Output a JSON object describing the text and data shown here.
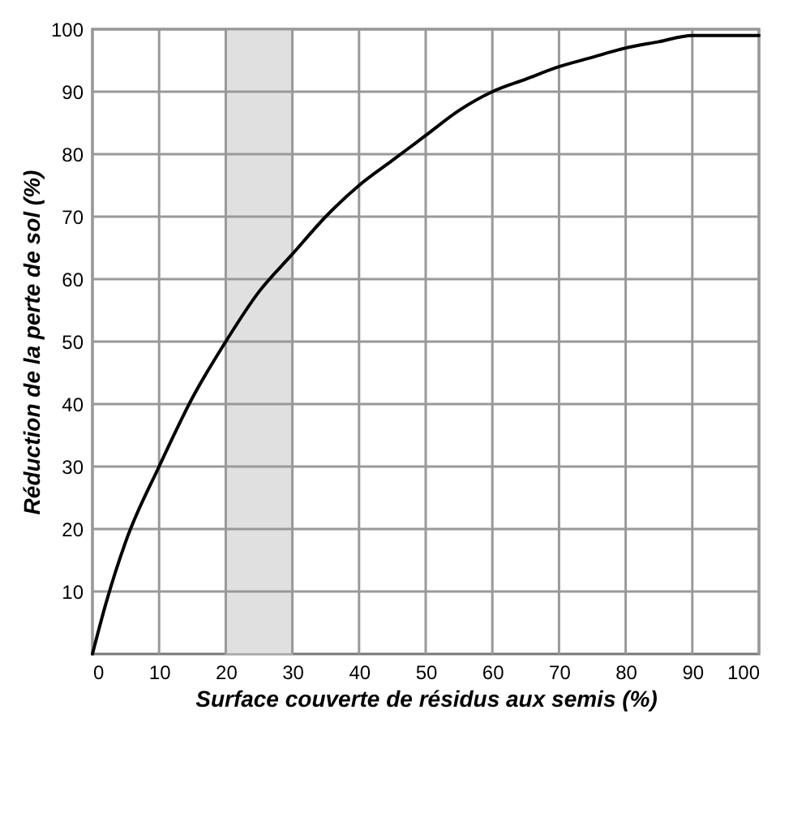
{
  "chart_data": {
    "type": "line",
    "xlabel": "Surface couverte de résidus aux semis (%)",
    "ylabel": "Réduction de la perte de sol (%)",
    "x": [
      0,
      2,
      5,
      10,
      15,
      20,
      25,
      30,
      35,
      40,
      45,
      50,
      55,
      60,
      65,
      70,
      75,
      80,
      85,
      90,
      95,
      100
    ],
    "series": [
      {
        "color": "#000000",
        "values": [
          0,
          8,
          18,
          30,
          41,
          50,
          58,
          64,
          70,
          75,
          79,
          83,
          87,
          90,
          92,
          94,
          95.5,
          97,
          98,
          99,
          99,
          99
        ]
      }
    ],
    "xlim": [
      0,
      100
    ],
    "ylim": [
      0,
      100
    ],
    "xticks": [
      0,
      10,
      20,
      30,
      40,
      50,
      60,
      70,
      80,
      90,
      100
    ],
    "yticks": [
      10,
      20,
      30,
      40,
      50,
      60,
      70,
      80,
      90,
      100
    ],
    "bands": [
      {
        "axis": "x",
        "from": 20,
        "to": 30,
        "color": "#e0e0e0"
      }
    ],
    "grid": true,
    "marker": "none",
    "line_style": "solid"
  }
}
